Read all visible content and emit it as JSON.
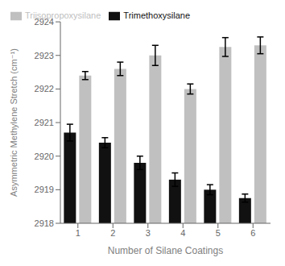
{
  "chart_data": {
    "type": "bar",
    "categories": [
      "1",
      "2",
      "3",
      "4",
      "5",
      "6"
    ],
    "series": [
      {
        "name": "Trimethoxysilane",
        "color": "#111111",
        "values": [
          2920.7,
          2920.4,
          2919.8,
          2919.3,
          2919.0,
          2918.75
        ],
        "errors": [
          0.25,
          0.15,
          0.2,
          0.2,
          0.15,
          0.12
        ]
      },
      {
        "name": "Triisopropoxysilane",
        "color": "#c0c0c0",
        "values": [
          2922.4,
          2922.6,
          2923.0,
          2922.0,
          2923.25,
          2923.3
        ],
        "errors": [
          0.12,
          0.2,
          0.3,
          0.15,
          0.28,
          0.25
        ]
      }
    ],
    "xlabel": "Number of Silane Coatings",
    "ylabel": "Asymmetric Methylene Stretch (cm⁻¹)",
    "ylim": [
      2918,
      2924
    ],
    "yticks": [
      2918,
      2919,
      2920,
      2921,
      2922,
      2923,
      2924
    ],
    "legend": "upper left",
    "grid": false
  }
}
